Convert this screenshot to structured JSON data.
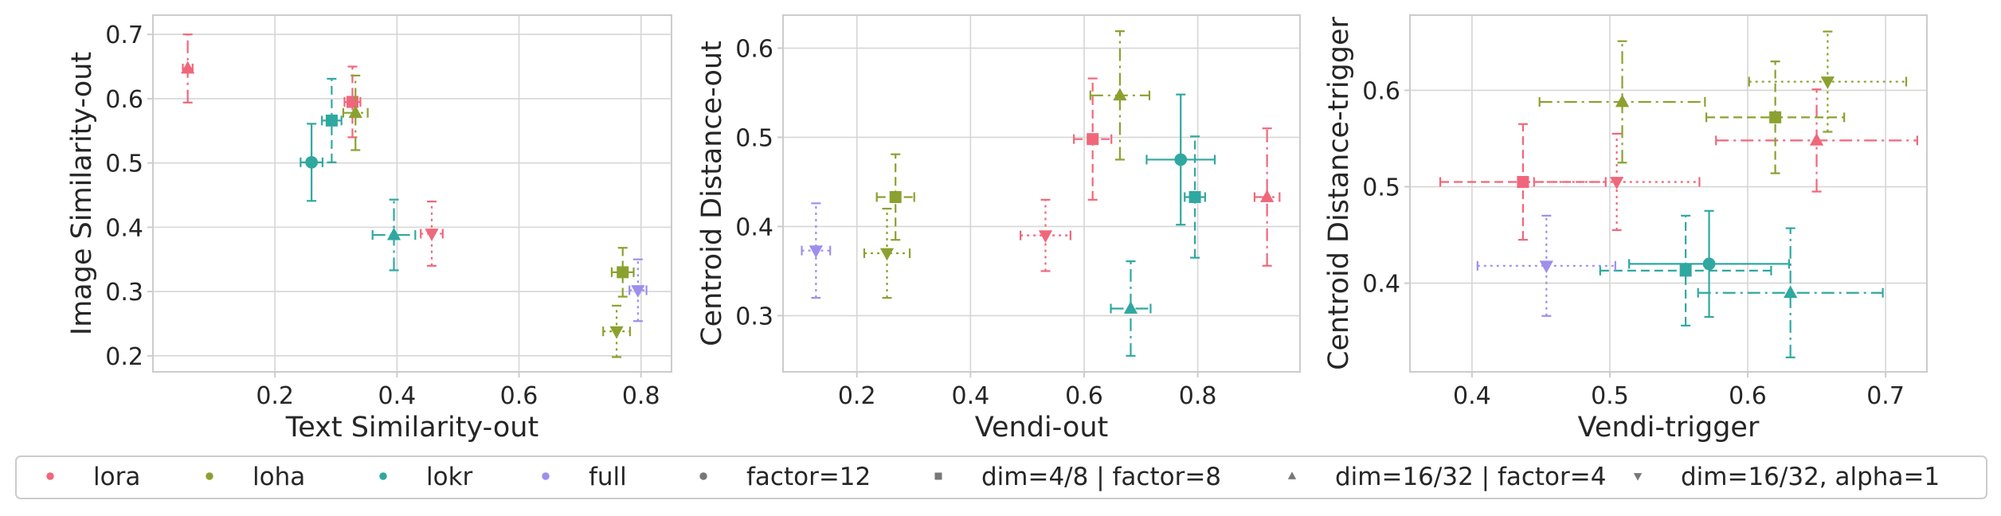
{
  "colors": {
    "lora": "#f0677b",
    "loha": "#8ba12f",
    "lokr": "#2fa8a0",
    "full": "#9d8fee",
    "neutral": "#777777"
  },
  "legend": {
    "methods": [
      {
        "label": "lora",
        "color_key": "lora"
      },
      {
        "label": "loha",
        "color_key": "loha"
      },
      {
        "label": "lokr",
        "color_key": "lokr"
      },
      {
        "label": "full",
        "color_key": "full"
      }
    ],
    "configs": [
      {
        "label": "factor=12",
        "marker": "circle"
      },
      {
        "label": "dim=4/8 | factor=8",
        "marker": "square"
      },
      {
        "label": "dim=16/32 | factor=4",
        "marker": "triangle"
      },
      {
        "label": "dim=16/32, alpha=1",
        "marker": "down-triangle"
      }
    ]
  },
  "chart_data": [
    {
      "type": "scatter",
      "xlabel": "Text Similarity-out",
      "ylabel": "Image Similarity-out",
      "xlim": [
        0.0,
        0.85
      ],
      "ylim": [
        0.175,
        0.73
      ],
      "xticks": [
        "0.2",
        "0.4",
        "0.6",
        "0.8"
      ],
      "xtick_values": [
        0.2,
        0.4,
        0.6,
        0.8
      ],
      "yticks": [
        "0.2",
        "0.3",
        "0.4",
        "0.5",
        "0.6",
        "0.7"
      ],
      "ytick_values": [
        0.2,
        0.3,
        0.4,
        0.5,
        0.6,
        0.7
      ],
      "grid": true,
      "points": [
        {
          "method": "lora",
          "marker": "square",
          "x": 0.327,
          "y": 0.595,
          "xerr": 0.013,
          "yerr": 0.055
        },
        {
          "method": "lora",
          "marker": "triangle",
          "x": 0.057,
          "y": 0.647,
          "xerr": 0.008,
          "yerr": 0.053
        },
        {
          "method": "lora",
          "marker": "down-triangle",
          "x": 0.457,
          "y": 0.39,
          "xerr": 0.018,
          "yerr": 0.05
        },
        {
          "method": "loha",
          "marker": "square",
          "x": 0.77,
          "y": 0.33,
          "xerr": 0.018,
          "yerr": 0.038
        },
        {
          "method": "loha",
          "marker": "triangle",
          "x": 0.332,
          "y": 0.578,
          "xerr": 0.02,
          "yerr": 0.058
        },
        {
          "method": "loha",
          "marker": "down-triangle",
          "x": 0.76,
          "y": 0.238,
          "xerr": 0.022,
          "yerr": 0.04
        },
        {
          "method": "lokr",
          "marker": "circle",
          "x": 0.26,
          "y": 0.501,
          "xerr": 0.018,
          "yerr": 0.06
        },
        {
          "method": "lokr",
          "marker": "square",
          "x": 0.293,
          "y": 0.566,
          "xerr": 0.016,
          "yerr": 0.065
        },
        {
          "method": "lokr",
          "marker": "triangle",
          "x": 0.395,
          "y": 0.388,
          "xerr": 0.035,
          "yerr": 0.055
        },
        {
          "method": "full",
          "marker": "down-triangle",
          "x": 0.795,
          "y": 0.302,
          "xerr": 0.014,
          "yerr": 0.048
        }
      ]
    },
    {
      "type": "scatter",
      "xlabel": "Vendi-out",
      "ylabel": "Centroid Distance-out",
      "xlim": [
        0.07,
        0.98
      ],
      "ylim": [
        0.237,
        0.637
      ],
      "xticks": [
        "0.2",
        "0.4",
        "0.6",
        "0.8"
      ],
      "xtick_values": [
        0.2,
        0.4,
        0.6,
        0.8
      ],
      "yticks": [
        "0.3",
        "0.4",
        "0.5",
        "0.6"
      ],
      "ytick_values": [
        0.3,
        0.4,
        0.5,
        0.6
      ],
      "grid": true,
      "points": [
        {
          "method": "lora",
          "marker": "square",
          "x": 0.615,
          "y": 0.498,
          "xerr": 0.033,
          "yerr": 0.068
        },
        {
          "method": "lora",
          "marker": "triangle",
          "x": 0.922,
          "y": 0.433,
          "xerr": 0.022,
          "yerr": 0.077
        },
        {
          "method": "lora",
          "marker": "down-triangle",
          "x": 0.532,
          "y": 0.39,
          "xerr": 0.044,
          "yerr": 0.04
        },
        {
          "method": "loha",
          "marker": "square",
          "x": 0.268,
          "y": 0.433,
          "xerr": 0.033,
          "yerr": 0.048
        },
        {
          "method": "loha",
          "marker": "triangle",
          "x": 0.663,
          "y": 0.547,
          "xerr": 0.052,
          "yerr": 0.072
        },
        {
          "method": "loha",
          "marker": "down-triangle",
          "x": 0.253,
          "y": 0.37,
          "xerr": 0.04,
          "yerr": 0.05
        },
        {
          "method": "lokr",
          "marker": "circle",
          "x": 0.77,
          "y": 0.475,
          "xerr": 0.06,
          "yerr": 0.073
        },
        {
          "method": "lokr",
          "marker": "square",
          "x": 0.795,
          "y": 0.433,
          "xerr": 0.018,
          "yerr": 0.068
        },
        {
          "method": "lokr",
          "marker": "triangle",
          "x": 0.682,
          "y": 0.308,
          "xerr": 0.035,
          "yerr": 0.053
        },
        {
          "method": "full",
          "marker": "down-triangle",
          "x": 0.128,
          "y": 0.373,
          "xerr": 0.025,
          "yerr": 0.053
        }
      ]
    },
    {
      "type": "scatter",
      "xlabel": "Vendi-trigger",
      "ylabel": "Centroid Distance-trigger",
      "xlim": [
        0.355,
        0.73
      ],
      "ylim": [
        0.308,
        0.678
      ],
      "xticks": [
        "0.4",
        "0.5",
        "0.6",
        "0.7"
      ],
      "xtick_values": [
        0.4,
        0.5,
        0.6,
        0.7
      ],
      "yticks": [
        "0.4",
        "0.5",
        "0.6"
      ],
      "ytick_values": [
        0.4,
        0.5,
        0.6
      ],
      "grid": true,
      "points": [
        {
          "method": "lora",
          "marker": "square",
          "x": 0.437,
          "y": 0.505,
          "xerr": 0.06,
          "yerr": 0.06
        },
        {
          "method": "lora",
          "marker": "triangle",
          "x": 0.65,
          "y": 0.548,
          "xerr": 0.073,
          "yerr": 0.053
        },
        {
          "method": "lora",
          "marker": "down-triangle",
          "x": 0.505,
          "y": 0.505,
          "xerr": 0.06,
          "yerr": 0.05
        },
        {
          "method": "loha",
          "marker": "square",
          "x": 0.62,
          "y": 0.572,
          "xerr": 0.05,
          "yerr": 0.058
        },
        {
          "method": "loha",
          "marker": "triangle",
          "x": 0.509,
          "y": 0.588,
          "xerr": 0.06,
          "yerr": 0.063
        },
        {
          "method": "loha",
          "marker": "down-triangle",
          "x": 0.658,
          "y": 0.609,
          "xerr": 0.057,
          "yerr": 0.052
        },
        {
          "method": "lokr",
          "marker": "circle",
          "x": 0.572,
          "y": 0.42,
          "xerr": 0.058,
          "yerr": 0.055
        },
        {
          "method": "lokr",
          "marker": "square",
          "x": 0.555,
          "y": 0.413,
          "xerr": 0.062,
          "yerr": 0.057
        },
        {
          "method": "lokr",
          "marker": "triangle",
          "x": 0.631,
          "y": 0.39,
          "xerr": 0.067,
          "yerr": 0.067
        },
        {
          "method": "full",
          "marker": "down-triangle",
          "x": 0.454,
          "y": 0.418,
          "xerr": 0.05,
          "yerr": 0.052
        }
      ]
    }
  ]
}
